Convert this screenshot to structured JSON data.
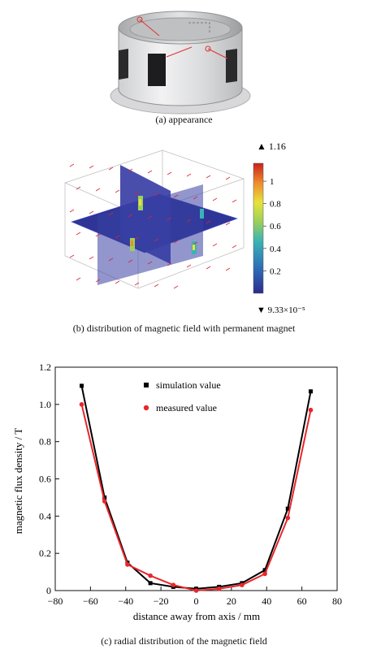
{
  "captions": {
    "a": "(a) appearance",
    "b": "(b) distribution of magnetic field with permanent magnet",
    "c": "(c) radial distribution of the magnetic field"
  },
  "colorbar": {
    "max_label": "▲ 1.16",
    "min_label": "▼ 9.33×10⁻⁵",
    "ticks": [
      "1",
      "0.8",
      "0.6",
      "0.4",
      "0.2"
    ]
  },
  "chart_data": {
    "type": "line",
    "xlabel": "distance away from  axis / mm",
    "ylabel": "magnetic flux density / T",
    "xlim": [
      -80,
      80
    ],
    "ylim": [
      0,
      1.2
    ],
    "xticks": [
      -80,
      -60,
      -40,
      -20,
      0,
      20,
      40,
      60,
      80
    ],
    "yticks": [
      0,
      0.2,
      0.4,
      0.6,
      0.8,
      1.0,
      1.2
    ],
    "xtick_labels": [
      "−80",
      "−60",
      "−40",
      "−20",
      "0",
      "20",
      "40",
      "60",
      "80"
    ],
    "ytick_labels": [
      "0",
      "0.2",
      "0.4",
      "0.6",
      "0.8",
      "1.0",
      "1.2"
    ],
    "legend_position": "top-center",
    "series": [
      {
        "name": "simulation value",
        "color": "#000000",
        "marker": "square",
        "x": [
          -65,
          -52,
          -39,
          -26,
          -13,
          0,
          13,
          26,
          39,
          52,
          65
        ],
        "y": [
          1.1,
          0.5,
          0.15,
          0.04,
          0.02,
          0.01,
          0.02,
          0.04,
          0.11,
          0.44,
          1.07
        ]
      },
      {
        "name": "measured value",
        "color": "#e8262b",
        "marker": "circle",
        "x": [
          -65,
          -52,
          -39,
          -26,
          -13,
          0,
          13,
          26,
          39,
          52,
          65
        ],
        "y": [
          1.0,
          0.48,
          0.14,
          0.08,
          0.03,
          0.0,
          0.01,
          0.03,
          0.09,
          0.39,
          0.97
        ]
      }
    ]
  }
}
